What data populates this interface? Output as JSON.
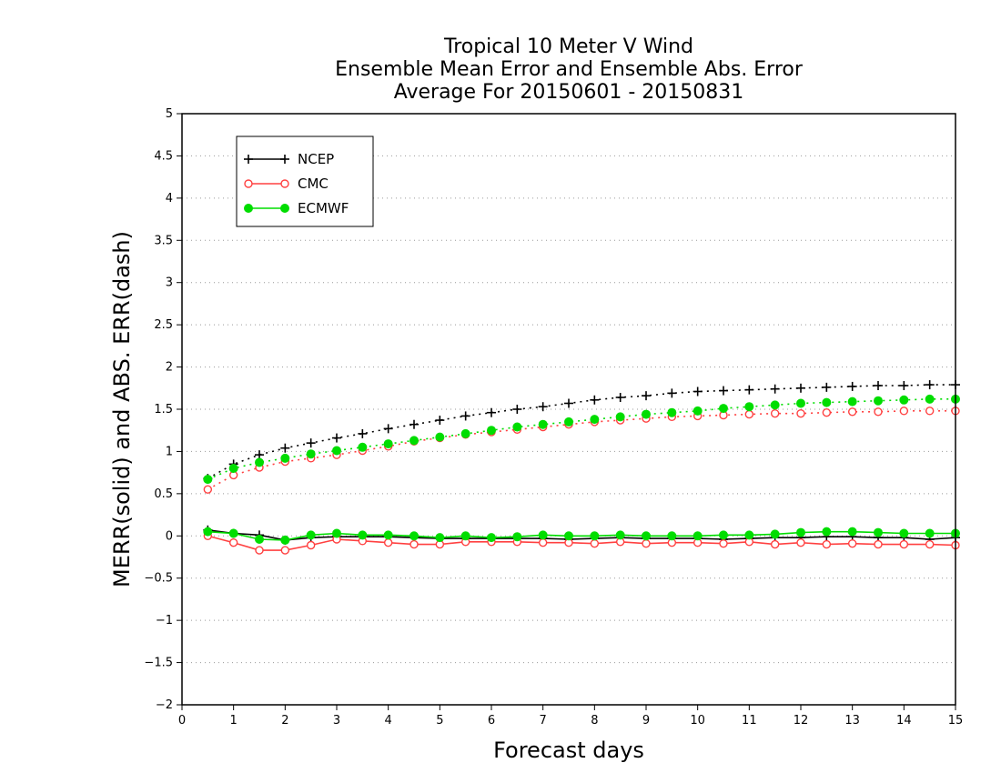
{
  "chart_data": {
    "type": "line",
    "title_lines": [
      "Tropical 10 Meter V Wind",
      "Ensemble Mean Error and Ensemble Abs. Error",
      "Average For 20150601 - 20150831"
    ],
    "xlabel": "Forecast days",
    "ylabel": "MERR(solid) and ABS. ERR(dash)",
    "xlim": [
      0,
      15
    ],
    "ylim": [
      -2,
      5
    ],
    "x_ticks": [
      0,
      1,
      2,
      3,
      4,
      5,
      6,
      7,
      8,
      9,
      10,
      11,
      12,
      13,
      14,
      15
    ],
    "x_tick_labels": [
      "0",
      "1",
      "2",
      "3",
      "4",
      "5",
      "6",
      "7",
      "8",
      "9",
      "10",
      "11",
      "12",
      "13",
      "14",
      "15"
    ],
    "y_ticks": [
      -2,
      -1.5,
      -1,
      -0.5,
      0,
      0.5,
      1,
      1.5,
      2,
      2.5,
      3,
      3.5,
      4,
      4.5,
      5
    ],
    "y_tick_labels": [
      "−2",
      "−1.5",
      "−1",
      "−0.5",
      "0",
      "0.5",
      "1",
      "1.5",
      "2",
      "2.5",
      "3",
      "3.5",
      "4",
      "4.5",
      "5"
    ],
    "grid": "horizontal dotted",
    "legend_position": "top-left",
    "x": [
      0.5,
      1,
      1.5,
      2,
      2.5,
      3,
      3.5,
      4,
      4.5,
      5,
      5.5,
      6,
      6.5,
      7,
      7.5,
      8,
      8.5,
      9,
      9.5,
      10,
      10.5,
      11,
      11.5,
      12,
      12.5,
      13,
      13.5,
      14,
      14.5,
      15
    ],
    "series": [
      {
        "name": "NCEP",
        "color": "#000000",
        "marker": "plus",
        "merr": [
          0.07,
          0.03,
          0.01,
          -0.05,
          -0.02,
          -0.01,
          -0.01,
          -0.01,
          -0.02,
          -0.03,
          -0.03,
          -0.03,
          -0.03,
          -0.03,
          -0.04,
          -0.03,
          -0.02,
          -0.03,
          -0.03,
          -0.03,
          -0.04,
          -0.03,
          -0.02,
          -0.02,
          -0.01,
          -0.01,
          -0.02,
          -0.02,
          -0.04,
          -0.02
        ],
        "abs_err": [
          0.68,
          0.85,
          0.96,
          1.04,
          1.1,
          1.16,
          1.21,
          1.27,
          1.32,
          1.37,
          1.42,
          1.46,
          1.5,
          1.53,
          1.57,
          1.61,
          1.64,
          1.66,
          1.69,
          1.71,
          1.72,
          1.73,
          1.74,
          1.75,
          1.76,
          1.77,
          1.78,
          1.78,
          1.79,
          1.79
        ]
      },
      {
        "name": "CMC",
        "color": "#ff4040",
        "marker": "open-circle",
        "merr": [
          0.0,
          -0.08,
          -0.17,
          -0.17,
          -0.11,
          -0.04,
          -0.06,
          -0.08,
          -0.1,
          -0.1,
          -0.07,
          -0.07,
          -0.07,
          -0.08,
          -0.08,
          -0.09,
          -0.07,
          -0.09,
          -0.08,
          -0.08,
          -0.09,
          -0.07,
          -0.1,
          -0.08,
          -0.1,
          -0.09,
          -0.1,
          -0.1,
          -0.1,
          -0.11
        ],
        "abs_err": [
          0.55,
          0.72,
          0.81,
          0.88,
          0.92,
          0.96,
          1.01,
          1.06,
          1.12,
          1.16,
          1.2,
          1.23,
          1.26,
          1.29,
          1.32,
          1.35,
          1.37,
          1.39,
          1.41,
          1.42,
          1.43,
          1.44,
          1.45,
          1.45,
          1.46,
          1.47,
          1.47,
          1.48,
          1.48,
          1.48
        ]
      },
      {
        "name": "ECMWF",
        "color": "#00dd00",
        "marker": "filled-circle",
        "merr": [
          0.05,
          0.03,
          -0.04,
          -0.05,
          0.01,
          0.03,
          0.01,
          0.01,
          0.0,
          -0.02,
          0.0,
          -0.02,
          -0.01,
          0.01,
          0.0,
          0.0,
          0.01,
          0.0,
          0.0,
          0.0,
          0.01,
          0.01,
          0.02,
          0.04,
          0.05,
          0.05,
          0.04,
          0.03,
          0.03,
          0.03
        ],
        "abs_err": [
          0.67,
          0.8,
          0.87,
          0.92,
          0.97,
          1.01,
          1.05,
          1.09,
          1.13,
          1.17,
          1.21,
          1.25,
          1.29,
          1.32,
          1.35,
          1.38,
          1.41,
          1.44,
          1.46,
          1.48,
          1.51,
          1.53,
          1.55,
          1.57,
          1.58,
          1.59,
          1.6,
          1.61,
          1.62,
          1.62
        ]
      }
    ]
  }
}
